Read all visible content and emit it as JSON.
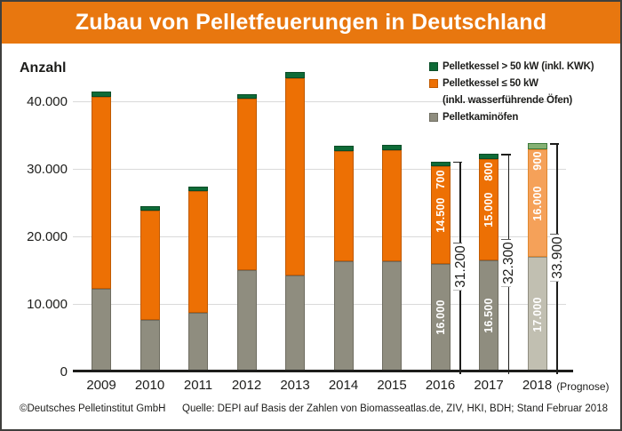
{
  "title": {
    "text": "Zubau von Pelletfeuerungen in Deutschland"
  },
  "colors": {
    "title_bg": "#e8770f",
    "text": "#1d1d1b",
    "grid": "#d9d9d9",
    "axis": "#1d1d1b",
    "bar_gray": "#8f8d7f",
    "bar_gray_border": "#6f6d61",
    "bar_orange": "#ed7004",
    "bar_orange_border": "#c05a02",
    "bar_green": "#0e6b37",
    "bar_green_border": "#094d27",
    "prog_gray": "#c1bfb1",
    "prog_gray_border": "#8f8d7f",
    "prog_orange": "#f5a159",
    "prog_orange_border": "#e0872f",
    "prog_green": "#85b173",
    "prog_green_border": "#3d7a3c",
    "label_on_bar": "#ffffff"
  },
  "legend": {
    "items": [
      {
        "label": "Pelletkessel > 50 kW (inkl. KWK)",
        "label2": "",
        "color": "#0e6b37",
        "border": "#094d27"
      },
      {
        "label": "Pelletkessel ≤ 50 kW",
        "label2": "(inkl. wasserführende Öfen)",
        "color": "#ed7004",
        "border": "#c05a02"
      },
      {
        "label": "Pelletkaminöfen",
        "label2": "",
        "color": "#8f8d7f",
        "border": "#6f6d61"
      }
    ]
  },
  "chart_data": {
    "type": "bar",
    "stacked": true,
    "title": "Zubau von Pelletfeuerungen in Deutschland",
    "ylabel": "Anzahl",
    "xlabel": "",
    "ylim": [
      0,
      46000
    ],
    "grid": "horizontal",
    "legend_position": "top-right",
    "yticks": [
      0,
      10000,
      20000,
      30000,
      40000
    ],
    "ytick_labels": [
      "0",
      "10.000",
      "20.000",
      "30.000",
      "40.000"
    ],
    "categories": [
      "2009",
      "2010",
      "2011",
      "2012",
      "2013",
      "2014",
      "2015",
      "2016",
      "2017",
      "2018 (Prognose)"
    ],
    "series": [
      {
        "name": "Pelletkaminöfen",
        "values": [
          12300,
          7600,
          8700,
          15000,
          14300,
          16400,
          16400,
          16000,
          16500,
          17000
        ]
      },
      {
        "name": "Pelletkessel ≤ 50 kW (inkl. wasserführende Öfen)",
        "values": [
          28500,
          16300,
          18100,
          25500,
          29300,
          16300,
          16400,
          14500,
          15000,
          16000
        ]
      },
      {
        "name": "Pelletkessel > 50 kW (inkl. KWK)",
        "values": [
          700,
          600,
          600,
          700,
          800,
          800,
          800,
          700,
          800,
          900
        ]
      }
    ],
    "bars": [
      {
        "year": "2009"
      },
      {
        "year": "2010"
      },
      {
        "year": "2011"
      },
      {
        "year": "2012"
      },
      {
        "year": "2013"
      },
      {
        "year": "2014"
      },
      {
        "year": "2015"
      },
      {
        "year": "2016",
        "seg_labels": [
          "16.000",
          "14.500",
          "700"
        ],
        "total": 31200,
        "total_label": "31.200"
      },
      {
        "year": "2017",
        "seg_labels": [
          "16.500",
          "15.000",
          "800"
        ],
        "total": 32300,
        "total_label": "32.300"
      },
      {
        "year": "2018",
        "suffix": "(Prognose)",
        "prognose": true,
        "seg_labels": [
          "17.000",
          "16.000",
          "900"
        ],
        "total": 33900,
        "total_label": "33.900"
      }
    ]
  },
  "footer": {
    "copyright": "©Deutsches Pelletinstitut GmbH",
    "source": "Quelle: DEPI auf Basis der Zahlen von Biomasseatlas.de, ZIV, HKI, BDH; Stand Februar 2018"
  }
}
